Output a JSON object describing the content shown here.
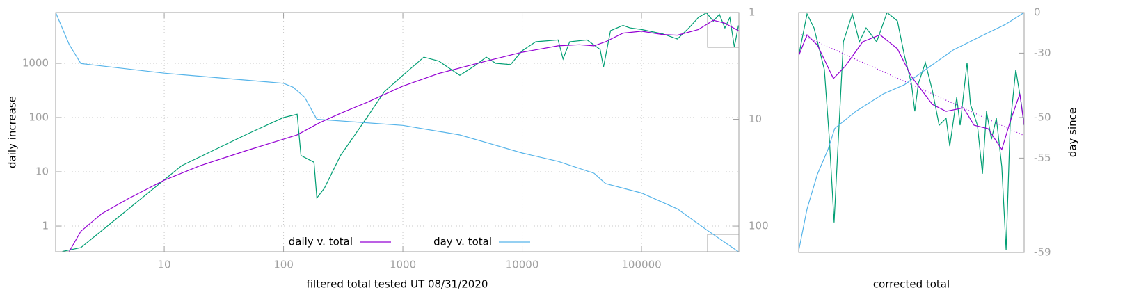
{
  "chart_data": [
    {
      "type": "line",
      "xlabel": "filtered total tested UT 08/31/2020",
      "ylabel": "daily increase",
      "xlog": true,
      "ylog": true,
      "y2log": true,
      "y2reverse": true,
      "xlim": [
        1.23,
        655000
      ],
      "ylim": [
        0.336,
        8630
      ],
      "y2lim": [
        1,
        174
      ],
      "xticks": [
        10,
        100,
        1000,
        10000,
        100000
      ],
      "yticks": [
        1,
        10,
        100,
        1000
      ],
      "y2ticks": [
        1,
        10,
        100
      ],
      "grid": true,
      "legend": "bottom",
      "series": [
        {
          "color": "#009e73",
          "x": [
            1.4,
            2,
            14,
            50,
            100,
            130,
            140,
            180,
            190,
            220,
            300,
            500,
            700,
            1000,
            1500,
            2000,
            3000,
            4000,
            5000,
            6000,
            8000,
            10000,
            13000,
            20000,
            22000,
            25000,
            35000,
            45000,
            48000,
            55000,
            70000,
            80000,
            100000,
            150000,
            200000,
            250000,
            300000,
            350000,
            400000,
            450000,
            500000,
            550000,
            600000,
            650000
          ],
          "values": [
            0.34,
            0.4,
            13,
            50,
            100,
            115,
            20,
            15,
            3.3,
            5,
            20,
            100,
            300,
            600,
            1300,
            1100,
            600,
            900,
            1300,
            1000,
            950,
            1700,
            2500,
            2700,
            1200,
            2500,
            2700,
            1800,
            850,
            4000,
            5000,
            4500,
            4200,
            3500,
            2800,
            4500,
            7000,
            8500,
            6000,
            8000,
            4500,
            7000,
            2000,
            5000
          ]
        },
        {
          "name": "daily v. total",
          "color": "#9400d3",
          "x": [
            1.6,
            2,
            3,
            5,
            10,
            20,
            50,
            100,
            130,
            200,
            300,
            500,
            1000,
            2000,
            5000,
            10000,
            20000,
            30000,
            40000,
            50000,
            70000,
            100000,
            150000,
            200000,
            300000,
            400000,
            500000,
            650000
          ],
          "values": [
            0.34,
            0.8,
            1.7,
            3.2,
            7,
            13,
            25,
            40,
            48,
            80,
            120,
            190,
            380,
            650,
            1100,
            1600,
            2100,
            2200,
            2100,
            2500,
            3600,
            3900,
            3400,
            3300,
            4200,
            6200,
            5500,
            4000
          ]
        },
        {
          "name": "day v. total",
          "color": "#56b4e9",
          "axis": "y2",
          "x": [
            1.23,
            1.6,
            2,
            10,
            100,
            120,
            150,
            190,
            1000,
            3000,
            5000,
            10000,
            20000,
            40000,
            50000,
            100000,
            200000,
            350000,
            650000
          ],
          "values": [
            1,
            2,
            3,
            3.7,
            4.6,
            5,
            6.2,
            10,
            11.4,
            14,
            16.5,
            20.7,
            24.8,
            32,
            40,
            49,
            69,
            108,
            174
          ]
        }
      ]
    },
    {
      "type": "line",
      "xlabel": "corrected total",
      "y2label": "day since",
      "xlim": [
        0,
        100
      ],
      "ylim": [
        0,
        100
      ],
      "y2log": true,
      "y2offset": 60,
      "y2lim": [
        -59,
        0
      ],
      "y2ticks": [
        0,
        -30,
        -50,
        -55,
        -59
      ],
      "series": [
        {
          "color": "#009e73",
          "x": [
            0,
            3.7,
            6.8,
            11.4,
            13.6,
            15.7,
            17.6,
            19.8,
            23.8,
            26.9,
            29.9,
            34.6,
            39.2,
            43.8,
            46.9,
            50,
            51.5,
            53.1,
            56.2,
            59.3,
            62.3,
            65.4,
            67,
            70.1,
            71.6,
            74.7,
            76.2,
            79.3,
            81.5,
            83.3,
            85.5,
            87.7,
            90.1,
            92,
            93.8,
            96.3,
            98.8,
            100
          ],
          "values": [
            82,
            99.4,
            93.6,
            76.2,
            47.2,
            12.5,
            47.2,
            87.8,
            99.4,
            87.8,
            93.6,
            87.8,
            100,
            96.5,
            82,
            70.4,
            58.8,
            70.4,
            79.1,
            67.5,
            53,
            55.9,
            44.3,
            64.6,
            53,
            79.1,
            61.7,
            53,
            32.8,
            58.8,
            47.2,
            55.9,
            35.7,
            0.9,
            53,
            76.2,
            61.7,
            53
          ]
        },
        {
          "color": "#9400d3",
          "x": [
            0,
            3.7,
            8.3,
            15.4,
            20.7,
            28.4,
            36.1,
            43.8,
            50,
            59.3,
            65.4,
            73.1,
            77.8,
            84,
            90.1,
            93.8,
            98.1,
            100
          ],
          "values": [
            82,
            90.7,
            86.4,
            72.5,
            77.7,
            87.8,
            90.7,
            84.9,
            73.3,
            61.7,
            58.8,
            60.3,
            53,
            51.6,
            42.9,
            54.5,
            66.1,
            53
          ]
        },
        {
          "color": "#9400d3",
          "dash": true,
          "x": [
            0,
            100
          ],
          "values": [
            91.3,
            48.7
          ]
        },
        {
          "color": "#56b4e9",
          "axis": "y2",
          "x": [
            0,
            3.7,
            8.3,
            13,
            16,
            25.3,
            37.7,
            46.9,
            56.2,
            68.5,
            80.9,
            91.7,
            100
          ],
          "values": [
            -58.97,
            -57.9,
            -56.2,
            -54.2,
            -51.7,
            -48.9,
            -45,
            -42.5,
            -37.4,
            -28.4,
            -19.9,
            -11,
            0
          ]
        }
      ]
    }
  ]
}
